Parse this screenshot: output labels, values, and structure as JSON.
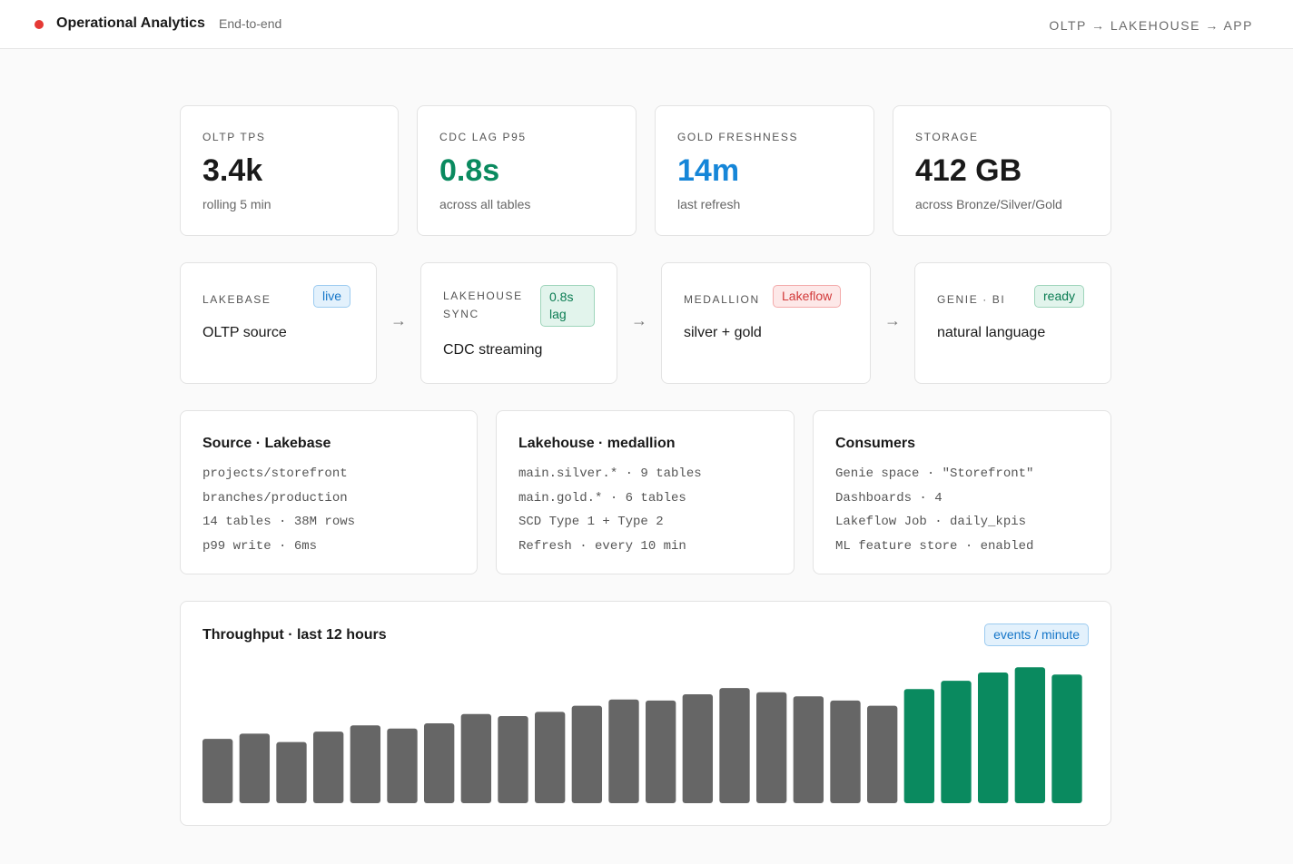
{
  "header": {
    "title": "Operational Analytics",
    "subtitle": "End-to-end",
    "flow": "OLTP → LAKEHOUSE → APP",
    "status_color": "#e53935"
  },
  "kpis": [
    {
      "label": "OLTP TPS",
      "value": "3.4k",
      "sub": "rolling 5 min"
    },
    {
      "label": "CDC LAG P95",
      "value": "0.8s",
      "sub": "across all tables"
    },
    {
      "label": "GOLD FRESHNESS",
      "value": "14m",
      "sub": "last refresh"
    },
    {
      "label": "STORAGE",
      "value": "412 GB",
      "sub": "across Bronze/Silver/Gold"
    }
  ],
  "pipeline": [
    {
      "label": "LAKEBASE",
      "badge": "live",
      "desc": "OLTP source"
    },
    {
      "label_line1": "LAKEHOUSE",
      "label_line2": "SYNC",
      "badge_line1": "0.8s",
      "badge_line2": "lag",
      "desc": "CDC streaming"
    },
    {
      "label": "MEDALLION",
      "badge": "Lakeflow",
      "desc": "silver + gold"
    },
    {
      "label": "GENIE · BI",
      "badge": "ready",
      "desc": "natural language"
    }
  ],
  "arrow_icon": "→",
  "details": [
    {
      "title": "Source · Lakebase",
      "lines": [
        "projects/storefront",
        "branches/production",
        "14 tables · 38M rows",
        "p99 write · 6ms"
      ]
    },
    {
      "title": "Lakehouse · medallion",
      "lines": [
        "main.silver.* · 9 tables",
        "main.gold.* · 6 tables",
        "SCD Type 1 + Type 2",
        "Refresh · every 10 min"
      ]
    },
    {
      "title": "Consumers",
      "lines": [
        "Genie space · \"Storefront\"",
        "Dashboards · 4",
        "Lakeflow Job · daily_kpis",
        "ML feature store · enabled"
      ]
    }
  ],
  "throughput": {
    "title": "Throughput · last 12 hours",
    "unit": "events / minute"
  },
  "chart_data": {
    "type": "bar",
    "title": "Throughput · last 12 hours",
    "unit": "events / minute",
    "values": [
      62,
      67,
      59,
      69,
      75,
      72,
      77,
      86,
      84,
      88,
      94,
      100,
      99,
      105,
      111,
      107,
      103,
      99,
      94,
      110,
      118,
      126,
      131,
      124
    ],
    "colors": {
      "normal": "#666666",
      "highlight": "#0a8a5f"
    },
    "highlight_from_index": 19,
    "ylim": [
      0,
      140
    ],
    "grid": false,
    "legend": "none"
  }
}
